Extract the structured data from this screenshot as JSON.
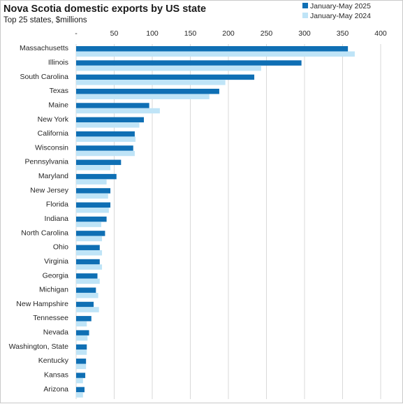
{
  "chart_data": {
    "type": "bar",
    "orientation": "horizontal",
    "title": "Nova Scotia domestic exports by US state",
    "subtitle": "Top 25 states, $millions",
    "xlabel": "",
    "ylabel": "",
    "xlim": [
      0,
      400
    ],
    "x_ticks": [
      0,
      50,
      100,
      150,
      200,
      250,
      300,
      350,
      400
    ],
    "x_tick_labels": [
      "-",
      "50",
      "100",
      "150",
      "200",
      "250",
      "300",
      "350",
      "400"
    ],
    "grid": true,
    "legend_position": "top-right",
    "categories": [
      "Massachusetts",
      "Illinois",
      "South Carolina",
      "Texas",
      "Maine",
      "New York",
      "California",
      "Wisconsin",
      "Pennsylvania",
      "Maryland",
      "New Jersey",
      "Florida",
      "Indiana",
      "North Carolina",
      "Ohio",
      "Virginia",
      "Georgia",
      "Michigan",
      "New Hampshire",
      "Tennessee",
      "Nevada",
      "Washington, State",
      "Kentucky",
      "Kansas",
      "Arizona"
    ],
    "series": [
      {
        "name": "January-May 2025",
        "color": "#0f6fb4",
        "values": [
          357,
          296,
          234,
          188,
          96,
          89,
          77,
          75,
          59,
          53,
          45,
          45,
          40,
          38,
          31,
          31,
          28,
          26,
          23,
          20,
          17,
          14,
          13,
          12,
          11
        ]
      },
      {
        "name": "January-May 2024",
        "color": "#bfe4f7",
        "values": [
          366,
          243,
          196,
          175,
          110,
          83,
          78,
          77,
          45,
          40,
          42,
          43,
          33,
          34,
          34,
          34,
          31,
          29,
          30,
          14,
          15,
          14,
          13,
          9,
          9
        ]
      }
    ]
  }
}
